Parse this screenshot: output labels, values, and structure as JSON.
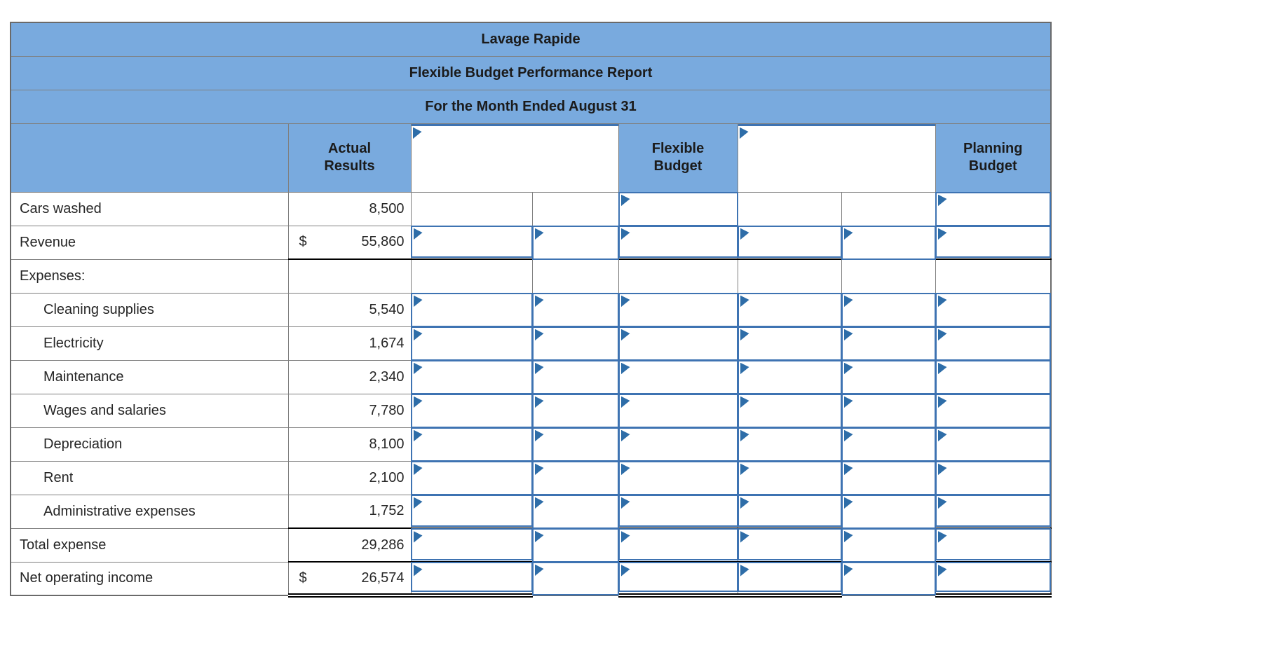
{
  "titles": {
    "company": "Lavage Rapide",
    "report": "Flexible Budget Performance Report",
    "period": "For the Month Ended August 31"
  },
  "column_headers": {
    "actual": "Actual Results",
    "flexible": "Flexible Budget",
    "planning": "Planning Budget"
  },
  "header_dropdowns": [
    {
      "value": "",
      "icon": "dropdown-flag-icon"
    },
    {
      "value": "",
      "icon": "dropdown-flag-icon"
    }
  ],
  "rows": [
    {
      "label": "Cars washed",
      "dollar": "",
      "amount": "8,500",
      "indent": false,
      "inputs": [
        "flex",
        "plan"
      ],
      "underline": "none"
    },
    {
      "label": "Revenue",
      "dollar": "$",
      "amount": "55,860",
      "indent": false,
      "inputs": [
        "var1amt",
        "var1dir",
        "flex",
        "var2amt",
        "var2dir",
        "plan"
      ],
      "underline": "single"
    },
    {
      "label": "Expenses:",
      "dollar": "",
      "amount": "",
      "indent": false,
      "inputs": [],
      "underline": "none"
    },
    {
      "label": "Cleaning supplies",
      "dollar": "",
      "amount": "5,540",
      "indent": true,
      "inputs": [
        "var1amt",
        "var1dir",
        "flex",
        "var2amt",
        "var2dir",
        "plan"
      ],
      "underline": "none"
    },
    {
      "label": "Electricity",
      "dollar": "",
      "amount": "1,674",
      "indent": true,
      "inputs": [
        "var1amt",
        "var1dir",
        "flex",
        "var2amt",
        "var2dir",
        "plan"
      ],
      "underline": "none"
    },
    {
      "label": "Maintenance",
      "dollar": "",
      "amount": "2,340",
      "indent": true,
      "inputs": [
        "var1amt",
        "var1dir",
        "flex",
        "var2amt",
        "var2dir",
        "plan"
      ],
      "underline": "none"
    },
    {
      "label": "Wages and salaries",
      "dollar": "",
      "amount": "7,780",
      "indent": true,
      "inputs": [
        "var1amt",
        "var1dir",
        "flex",
        "var2amt",
        "var2dir",
        "plan"
      ],
      "underline": "none"
    },
    {
      "label": "Depreciation",
      "dollar": "",
      "amount": "8,100",
      "indent": true,
      "inputs": [
        "var1amt",
        "var1dir",
        "flex",
        "var2amt",
        "var2dir",
        "plan"
      ],
      "underline": "none"
    },
    {
      "label": "Rent",
      "dollar": "",
      "amount": "2,100",
      "indent": true,
      "inputs": [
        "var1amt",
        "var1dir",
        "flex",
        "var2amt",
        "var2dir",
        "plan"
      ],
      "underline": "none"
    },
    {
      "label": "Administrative expenses",
      "dollar": "",
      "amount": "1,752",
      "indent": true,
      "inputs": [
        "var1amt",
        "var1dir",
        "flex",
        "var2amt",
        "var2dir",
        "plan"
      ],
      "underline": "single"
    },
    {
      "label": "Total expense",
      "dollar": "",
      "amount": "29,286",
      "indent": false,
      "inputs": [
        "var1amt",
        "var1dir",
        "flex",
        "var2amt",
        "var2dir",
        "plan"
      ],
      "underline": "single"
    },
    {
      "label": "Net operating income",
      "dollar": "$",
      "amount": "26,574",
      "indent": false,
      "inputs": [
        "var1amt",
        "var1dir",
        "flex",
        "var2amt",
        "var2dir",
        "plan"
      ],
      "underline": "double"
    }
  ],
  "colors": {
    "header_bg": "#79aade",
    "grid_border": "#7f7f7f",
    "input_border": "#3e73b2",
    "flag": "#2e6da8",
    "rule": "#000000"
  }
}
